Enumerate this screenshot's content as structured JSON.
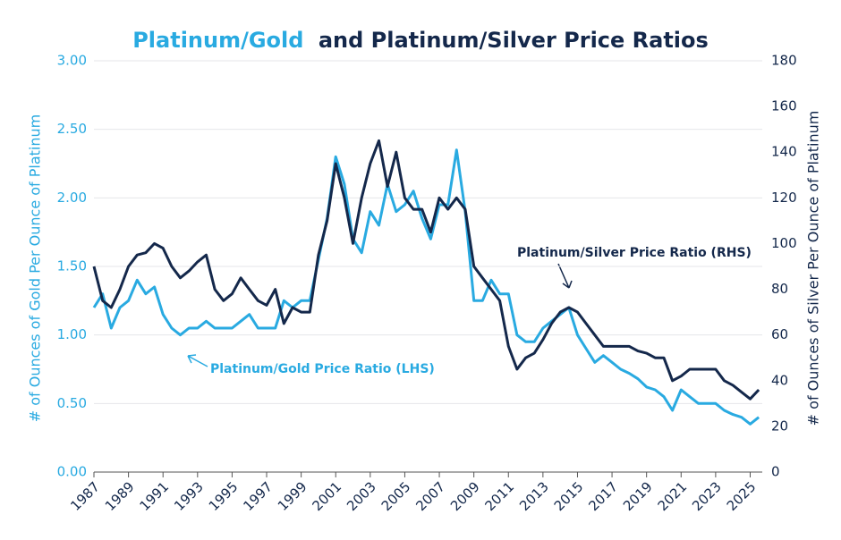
{
  "chart_data": {
    "type": "line",
    "title": [
      "Platinum/Gold",
      "and Platinum/Silver Price Ratios"
    ],
    "title_colors": [
      "#29aae1",
      "#14284b"
    ],
    "y_label": "# of Ounces of Gold Per Ounce of Platinum",
    "y2_label": "# of Ounces of Silver Per Ounce of Platinum",
    "x": [
      1987,
      1987.5,
      1988,
      1988.5,
      1989,
      1989.5,
      1990,
      1990.5,
      1991,
      1991.5,
      1992,
      1992.5,
      1993,
      1993.5,
      1994,
      1994.5,
      1995,
      1995.5,
      1996,
      1996.5,
      1997,
      1997.5,
      1998,
      1998.5,
      1999,
      1999.5,
      2000,
      2000.5,
      2001,
      2001.5,
      2002,
      2002.5,
      2003,
      2003.5,
      2004,
      2004.5,
      2005,
      2005.5,
      2006,
      2006.5,
      2007,
      2007.5,
      2008,
      2008.5,
      2009,
      2009.5,
      2010,
      2010.5,
      2011,
      2011.5,
      2012,
      2012.5,
      2013,
      2013.5,
      2014,
      2014.5,
      2015,
      2015.5,
      2016,
      2016.5,
      2017,
      2017.5,
      2018,
      2018.5,
      2019,
      2019.5,
      2020,
      2020.5,
      2021,
      2021.5,
      2022,
      2022.5,
      2023,
      2023.5,
      2024,
      2024.5,
      2025,
      2025.5
    ],
    "series": [
      {
        "name": "Platinum/Gold Price Ratio (LHS)",
        "color": "#29aae1",
        "axis": "y",
        "values": [
          1.2,
          1.3,
          1.05,
          1.2,
          1.25,
          1.4,
          1.3,
          1.35,
          1.15,
          1.05,
          1.0,
          1.05,
          1.05,
          1.1,
          1.05,
          1.05,
          1.05,
          1.1,
          1.15,
          1.05,
          1.05,
          1.05,
          1.25,
          1.2,
          1.25,
          1.25,
          1.55,
          1.85,
          2.3,
          2.1,
          1.7,
          1.6,
          1.9,
          1.8,
          2.1,
          1.9,
          1.95,
          2.05,
          1.85,
          1.7,
          1.95,
          1.95,
          2.35,
          1.9,
          1.25,
          1.25,
          1.4,
          1.3,
          1.3,
          1.0,
          0.95,
          0.95,
          1.05,
          1.1,
          1.15,
          1.2,
          1.0,
          0.9,
          0.8,
          0.85,
          0.8,
          0.75,
          0.72,
          0.68,
          0.62,
          0.6,
          0.55,
          0.45,
          0.6,
          0.55,
          0.5,
          0.5,
          0.5,
          0.45,
          0.42,
          0.4,
          0.35,
          0.4
        ]
      },
      {
        "name": "Platinum/Silver Price Ratio (RHS)",
        "color": "#14284b",
        "axis": "y2",
        "values": [
          90,
          75,
          72,
          80,
          90,
          95,
          96,
          100,
          98,
          90,
          85,
          88,
          92,
          95,
          80,
          75,
          78,
          85,
          80,
          75,
          73,
          80,
          65,
          72,
          70,
          70,
          95,
          110,
          135,
          120,
          100,
          120,
          135,
          145,
          125,
          140,
          120,
          115,
          115,
          105,
          120,
          115,
          120,
          115,
          90,
          85,
          80,
          75,
          55,
          45,
          50,
          52,
          58,
          65,
          70,
          72,
          70,
          65,
          60,
          55,
          55,
          55,
          55,
          53,
          52,
          50,
          50,
          40,
          42,
          45,
          45,
          45,
          45,
          40,
          38,
          35,
          32,
          36
        ]
      }
    ],
    "xlim": [
      1987,
      2025.7
    ],
    "xticks": [
      1987,
      1989,
      1991,
      1993,
      1995,
      1997,
      1999,
      2001,
      2003,
      2005,
      2007,
      2009,
      2011,
      2013,
      2015,
      2017,
      2019,
      2021,
      2023,
      2025
    ],
    "ylim": [
      0,
      3
    ],
    "yticks": [
      {
        "value": 0,
        "label": "0.00"
      },
      {
        "value": 0.5,
        "label": "0.50"
      },
      {
        "value": 1,
        "label": "1.00"
      },
      {
        "value": 1.5,
        "label": "1.50"
      },
      {
        "value": 2,
        "label": "2.00"
      },
      {
        "value": 2.5,
        "label": "2.50"
      },
      {
        "value": 3,
        "label": "3.00"
      }
    ],
    "y2lim": [
      0,
      180
    ],
    "y2ticks": [
      0,
      20,
      40,
      60,
      80,
      100,
      120,
      140,
      160,
      180
    ],
    "grid": true
  }
}
